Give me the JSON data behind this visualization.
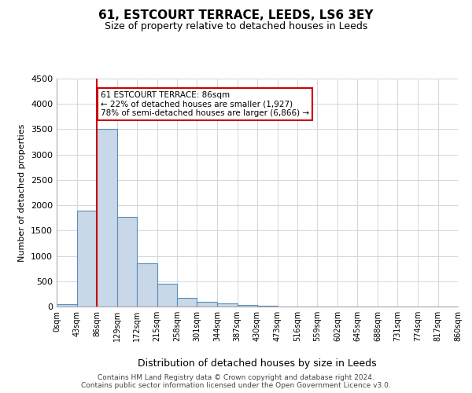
{
  "title": "61, ESTCOURT TERRACE, LEEDS, LS6 3EY",
  "subtitle": "Size of property relative to detached houses in Leeds",
  "xlabel": "Distribution of detached houses by size in Leeds",
  "ylabel": "Number of detached properties",
  "bins": [
    0,
    43,
    86,
    129,
    172,
    215,
    258,
    301,
    344,
    387,
    430,
    473,
    516,
    559,
    602,
    645,
    688,
    731,
    774,
    817,
    860
  ],
  "bin_labels": [
    "0sqm",
    "43sqm",
    "86sqm",
    "129sqm",
    "172sqm",
    "215sqm",
    "258sqm",
    "301sqm",
    "344sqm",
    "387sqm",
    "430sqm",
    "473sqm",
    "516sqm",
    "559sqm",
    "602sqm",
    "645sqm",
    "688sqm",
    "731sqm",
    "774sqm",
    "817sqm",
    "860sqm"
  ],
  "bar_heights": [
    50,
    1900,
    3500,
    1775,
    850,
    450,
    175,
    100,
    60,
    30,
    10,
    0,
    0,
    0,
    0,
    0,
    0,
    0,
    0,
    0
  ],
  "bar_color": "#c8d8e8",
  "bar_edgecolor": "#5b8db8",
  "ylim": [
    0,
    4500
  ],
  "yticks": [
    0,
    500,
    1000,
    1500,
    2000,
    2500,
    3000,
    3500,
    4000,
    4500
  ],
  "property_size": 86,
  "vline_color": "#cc0000",
  "annotation_text": "61 ESTCOURT TERRACE: 86sqm\n← 22% of detached houses are smaller (1,927)\n78% of semi-detached houses are larger (6,866) →",
  "annotation_box_edgecolor": "#cc0000",
  "footer_line1": "Contains HM Land Registry data © Crown copyright and database right 2024.",
  "footer_line2": "Contains public sector information licensed under the Open Government Licence v3.0.",
  "background_color": "#ffffff",
  "grid_color": "#d0d8e0"
}
